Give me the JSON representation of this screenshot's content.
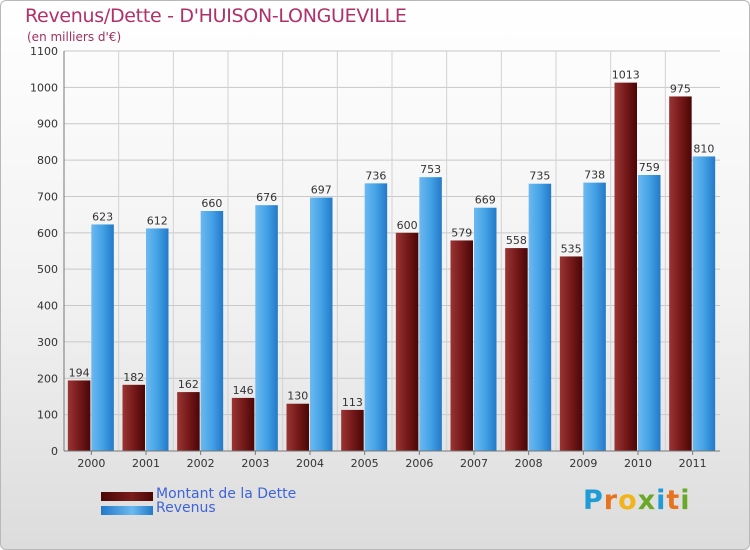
{
  "chart_data": {
    "type": "bar",
    "title": "Revenus/Dette - D'HUISON-LONGUEVILLE",
    "subtitle": "(en milliers d'€)",
    "categories": [
      "2000",
      "2001",
      "2002",
      "2003",
      "2004",
      "2005",
      "2006",
      "2007",
      "2008",
      "2009",
      "2010",
      "2011"
    ],
    "series": [
      {
        "name": "Montant de la Dette",
        "color": "#7a1c1c",
        "values": [
          194,
          182,
          162,
          146,
          130,
          113,
          600,
          579,
          558,
          535,
          1013,
          975
        ]
      },
      {
        "name": "Revenus",
        "color": "#3d9be0",
        "values": [
          623,
          612,
          660,
          676,
          697,
          736,
          753,
          669,
          735,
          738,
          759,
          810
        ]
      }
    ],
    "ylim": [
      0,
      1100
    ],
    "yticks": [
      0,
      100,
      200,
      300,
      400,
      500,
      600,
      700,
      800,
      900,
      1000,
      1100
    ],
    "grid": true,
    "legend_position": "bottom-left"
  },
  "legend": {
    "debt_label": "Montant de la Dette",
    "revenue_label": "Revenus"
  },
  "logo": {
    "letters": [
      "P",
      "r",
      "o",
      "x",
      "i",
      "t",
      "i"
    ]
  }
}
